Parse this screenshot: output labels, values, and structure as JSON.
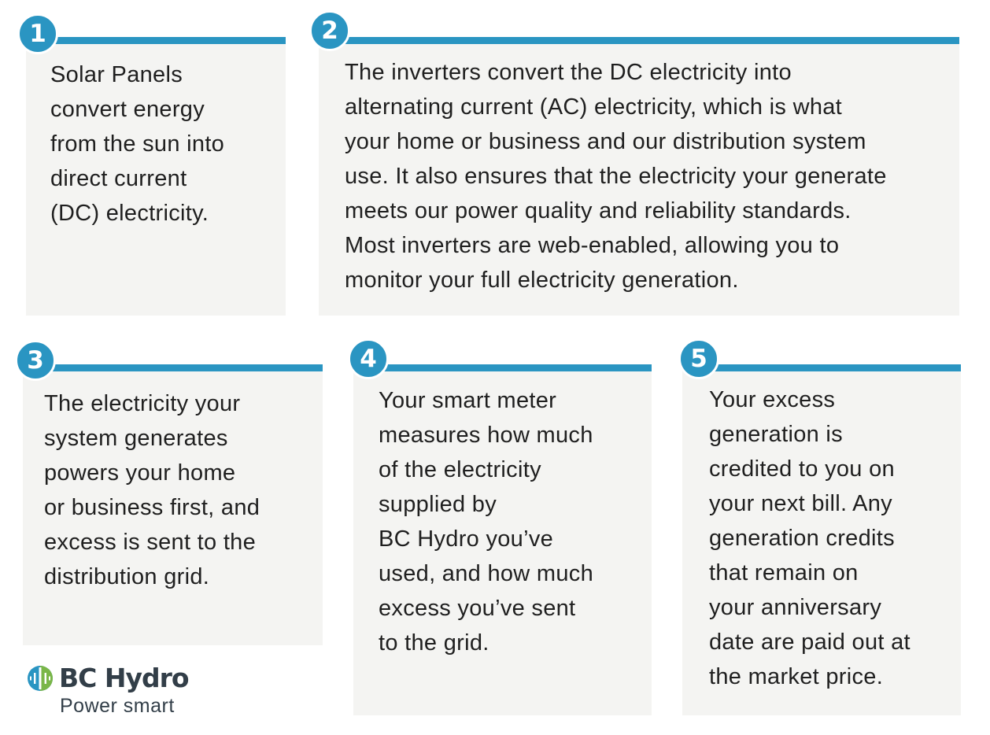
{
  "steps": [
    {
      "number": "1",
      "text": "Solar Panels\nconvert energy\nfrom the sun into\ndirect current\n(DC) electricity."
    },
    {
      "number": "2",
      "text": "The inverters convert the DC electricity into\nalternating current (AC) electricity, which is what\nyour home or business and our distribution system\nuse. It also ensures that the electricity your generate\nmeets our power quality and reliability standards.\nMost inverters are web-enabled, allowing you to\nmonitor your full electricity generation."
    },
    {
      "number": "3",
      "text": "The electricity your\nsystem generates\npowers your home\nor business first, and\nexcess is sent to the\ndistribution grid."
    },
    {
      "number": "4",
      "text": "Your smart meter\nmeasures how much\nof the electricity\nsupplied by\nBC Hydro you’ve\nused, and how much\nexcess you’ve sent\nto the grid."
    },
    {
      "number": "5",
      "text": "Your excess\ngeneration is\ncredited to you on\nyour next bill. Any\ngeneration credits\nthat remain on\nyour anniversary\ndate are paid out at\nthe market price."
    }
  ],
  "logo": {
    "name": "BC Hydro",
    "tagline": "Power smart",
    "icon": "bc-hydro-logo-icon"
  },
  "colors": {
    "accent": "#2a95c2",
    "card_background": "#f4f4f2",
    "text": "#1f1f1f",
    "logo_text": "#323e48",
    "logo_blue": "#2a95c2",
    "logo_green": "#7ab648"
  }
}
